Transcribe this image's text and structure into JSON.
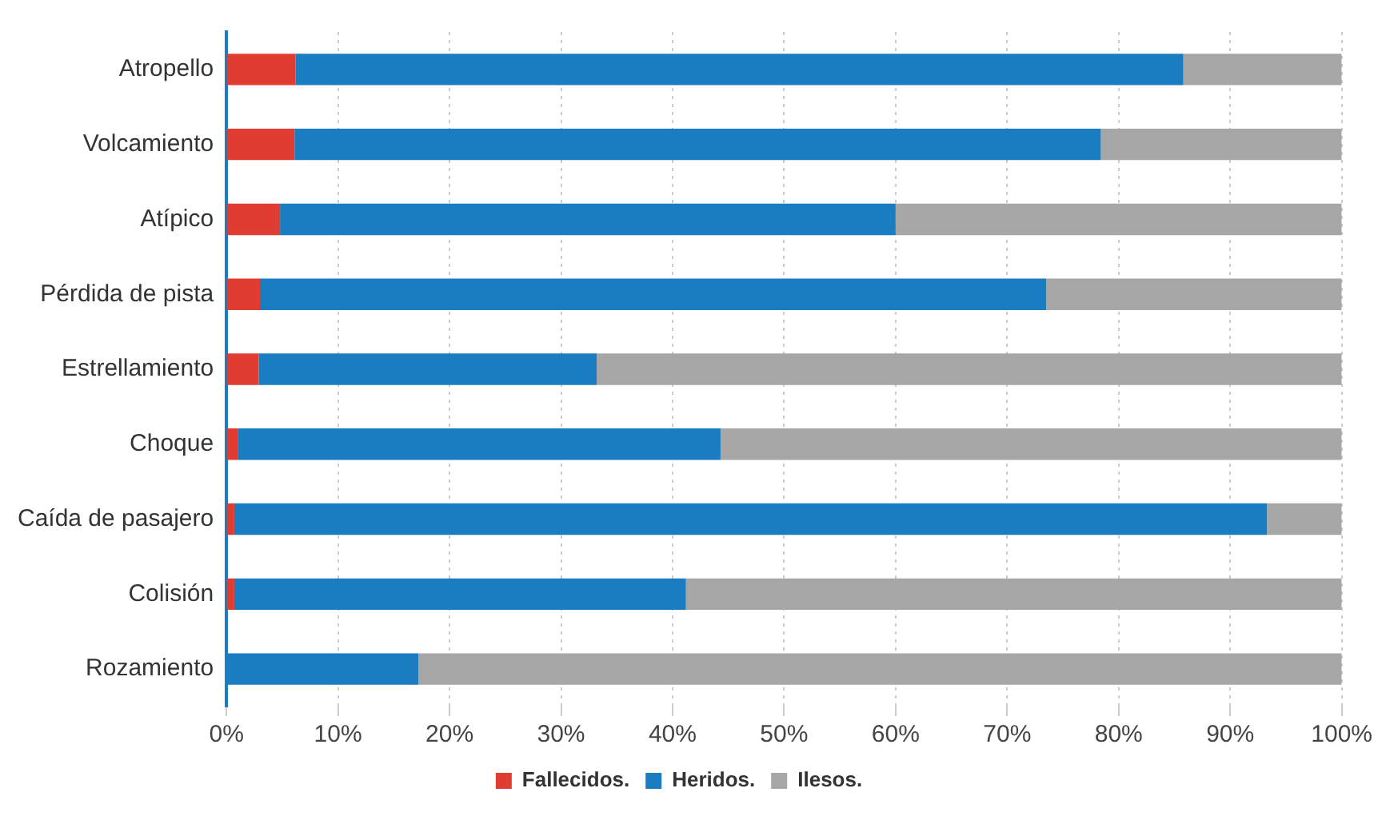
{
  "chart_data": {
    "type": "bar",
    "orientation": "horizontal",
    "stacked": true,
    "categories": [
      "Atropello",
      "Volcamiento",
      "Atípico",
      "Pérdida de pista",
      "Estrellamiento",
      "Choque",
      "Caída de pasajero",
      "Colisión",
      "Rozamiento"
    ],
    "series": [
      {
        "name": "Fallecidos.",
        "color": "#e03c31",
        "values": [
          6.2,
          6.1,
          4.8,
          3.0,
          2.9,
          1.0,
          0.7,
          0.7,
          0
        ]
      },
      {
        "name": "Heridos.",
        "color": "#1a7cc1",
        "values": [
          79.6,
          72.3,
          55.2,
          70.5,
          30.3,
          43.3,
          92.6,
          40.5,
          17.2
        ]
      },
      {
        "name": "Ilesos.",
        "color": "#a6a6a6",
        "values": [
          14.2,
          21.6,
          40.0,
          26.5,
          66.8,
          55.7,
          6.7,
          58.8,
          82.8
        ]
      }
    ],
    "xlim": [
      0,
      100
    ],
    "xticks": [
      {
        "value": 0,
        "label": "0%"
      },
      {
        "value": 10,
        "label": "10%"
      },
      {
        "value": 20,
        "label": "20%"
      },
      {
        "value": 30,
        "label": "30%"
      },
      {
        "value": 40,
        "label": "40%"
      },
      {
        "value": 50,
        "label": "50%"
      },
      {
        "value": 60,
        "label": "60%"
      },
      {
        "value": 70,
        "label": "70%"
      },
      {
        "value": 80,
        "label": "80%"
      },
      {
        "value": 90,
        "label": "90%"
      },
      {
        "value": 100,
        "label": "100%"
      }
    ],
    "grid": "x",
    "legend": "bottom"
  }
}
